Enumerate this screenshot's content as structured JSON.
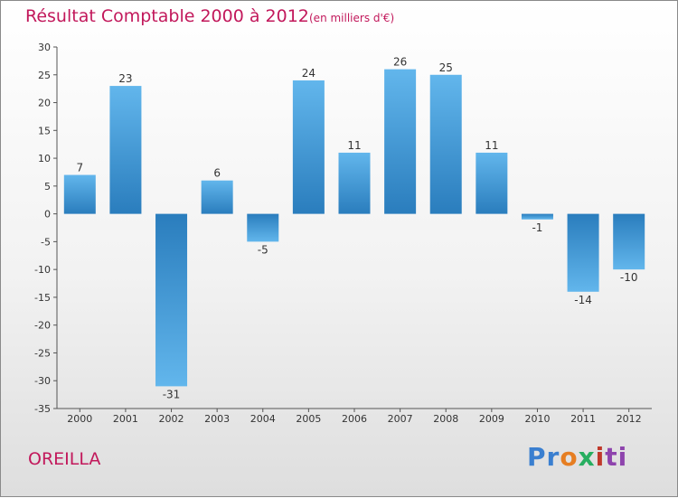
{
  "chart_data": {
    "type": "bar",
    "title": "Résultat Comptable 2000 à 2012",
    "subtitle": "(en milliers d'€)",
    "categories": [
      "2000",
      "2001",
      "2002",
      "2003",
      "2004",
      "2005",
      "2006",
      "2007",
      "2008",
      "2009",
      "2010",
      "2011",
      "2012"
    ],
    "values": [
      7,
      23,
      -31,
      6,
      -5,
      24,
      11,
      26,
      25,
      11,
      -1,
      -14,
      -10
    ],
    "ylim": [
      -35,
      30
    ],
    "yticks": [
      30,
      25,
      20,
      15,
      10,
      5,
      0,
      -5,
      -10,
      -15,
      -20,
      -25,
      -30,
      -35
    ],
    "xlabel": "",
    "ylabel": "",
    "grid": false
  },
  "footer": {
    "commune": "OREILLA",
    "logo": [
      "Pr",
      "o",
      "x",
      "i",
      "ti"
    ]
  },
  "colors": {
    "title": "#c2185b",
    "bar_light": "#5fb3ea",
    "bar_dark": "#2a7dbd"
  }
}
